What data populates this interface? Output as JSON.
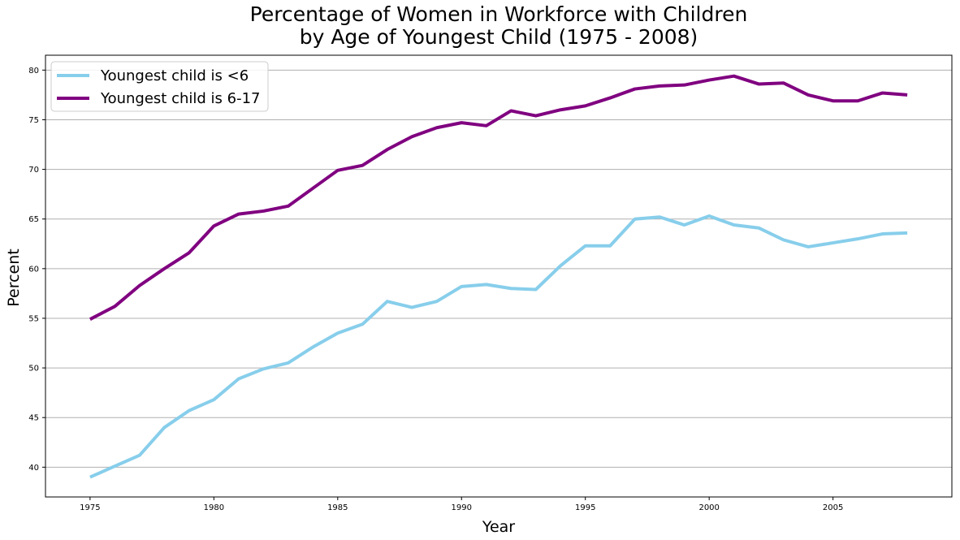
{
  "chart_data": {
    "type": "line",
    "title": "Percentage of Women in Workforce with Children",
    "subtitle": "by Age of Youngest Child (1975 - 2008)",
    "xlabel": "Year",
    "ylabel": "Percent",
    "xlim": [
      1973.2,
      2009.8
    ],
    "ylim": [
      37.0,
      81.5
    ],
    "x_ticks": [
      1975,
      1980,
      1985,
      1990,
      1995,
      2000,
      2005
    ],
    "y_ticks": [
      40,
      45,
      50,
      55,
      60,
      65,
      70,
      75,
      80
    ],
    "grid": "horizontal",
    "legend_position": "top-left",
    "x": [
      1975,
      1976,
      1977,
      1978,
      1979,
      1980,
      1981,
      1982,
      1983,
      1984,
      1985,
      1986,
      1987,
      1988,
      1989,
      1990,
      1991,
      1992,
      1993,
      1994,
      1995,
      1996,
      1997,
      1998,
      1999,
      2000,
      2001,
      2002,
      2003,
      2004,
      2005,
      2006,
      2007,
      2008
    ],
    "series": [
      {
        "name": "Youngest child is <6",
        "color": "#87CEEB",
        "values": [
          39.0,
          40.1,
          41.2,
          44.0,
          45.7,
          46.8,
          48.9,
          49.9,
          50.5,
          52.1,
          53.5,
          54.4,
          56.7,
          56.1,
          56.7,
          58.2,
          58.4,
          58.0,
          57.9,
          60.3,
          62.3,
          62.3,
          65.0,
          65.2,
          64.4,
          65.3,
          64.4,
          64.1,
          62.9,
          62.2,
          62.6,
          63.0,
          63.5,
          63.6
        ]
      },
      {
        "name": "Youngest child is 6-17",
        "color": "#800080",
        "values": [
          54.9,
          56.2,
          58.3,
          60.0,
          61.6,
          64.3,
          65.5,
          65.8,
          66.3,
          68.1,
          69.9,
          70.4,
          72.0,
          73.3,
          74.2,
          74.7,
          74.4,
          75.9,
          75.4,
          76.0,
          76.4,
          77.2,
          78.1,
          78.4,
          78.5,
          79.0,
          79.4,
          78.6,
          78.7,
          77.5,
          76.9,
          76.9,
          77.7,
          77.5
        ]
      }
    ]
  }
}
